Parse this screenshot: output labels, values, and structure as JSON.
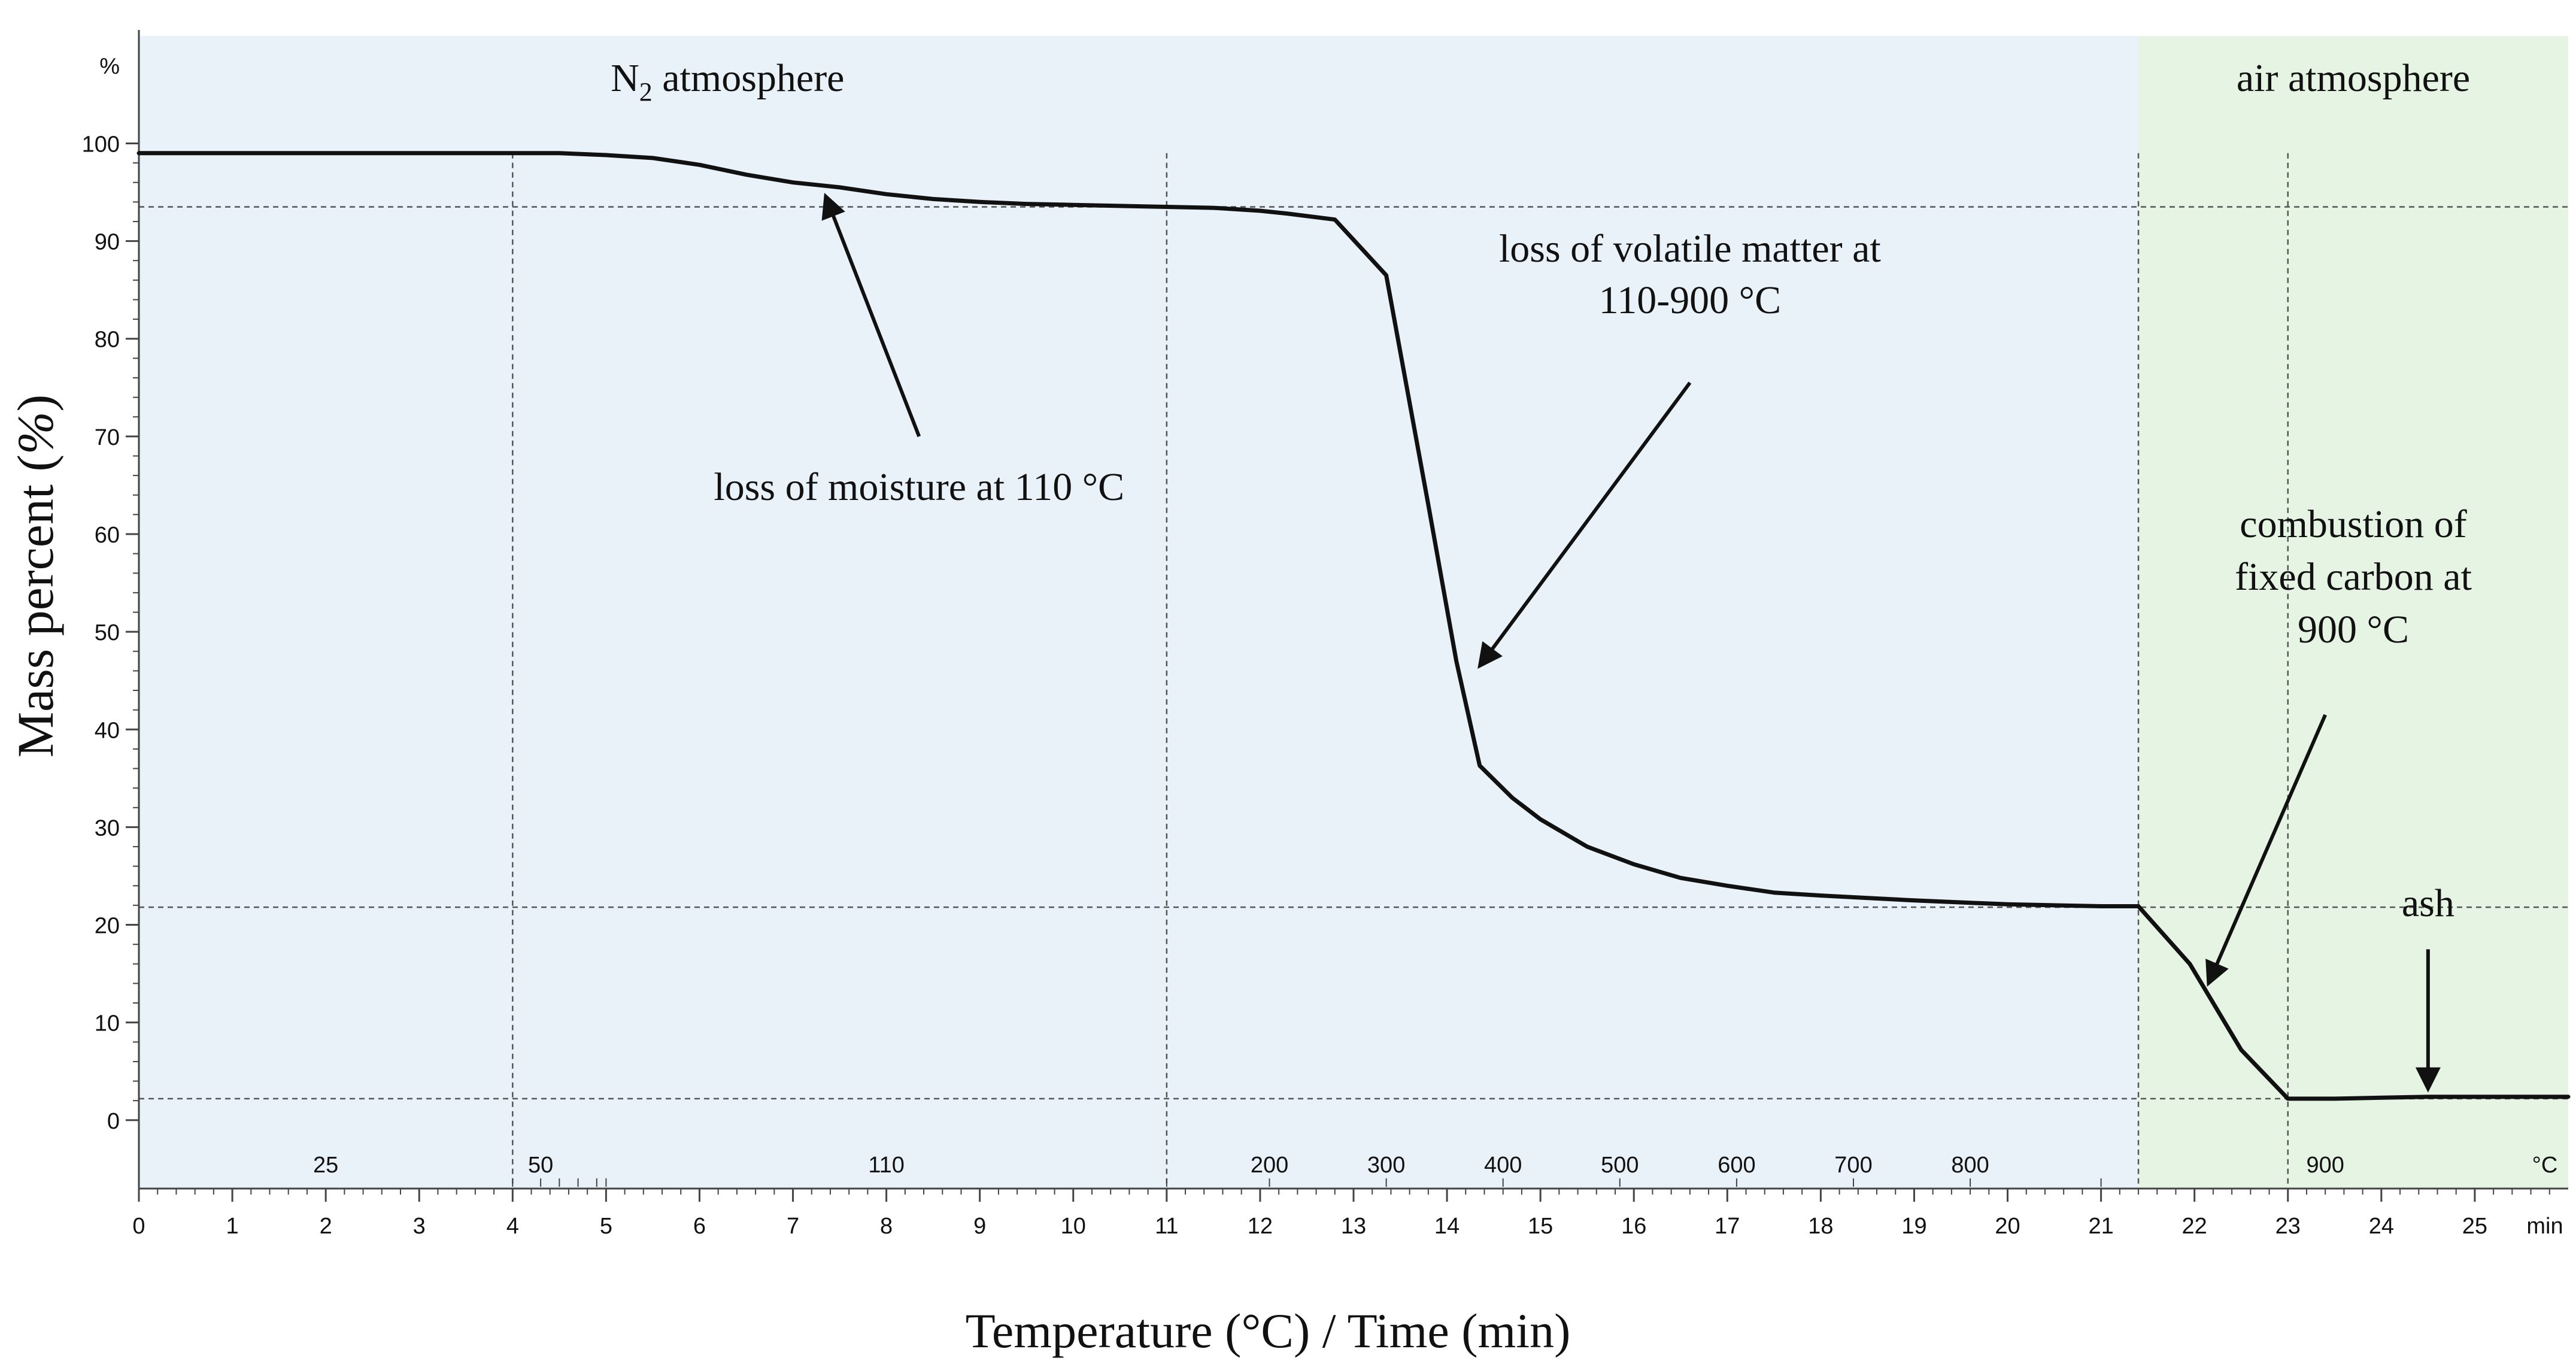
{
  "chart_data": {
    "type": "line",
    "title": "",
    "xlabel": "Temperature (°C) / Time (min)",
    "ylabel": "Mass percent (%)",
    "ylabel_parts": {
      "main": "Mass percent (",
      "unit": "%",
      "close": ")"
    },
    "y_unit": "%",
    "x_unit": "min",
    "temp_unit": "°C",
    "xlim": [
      0,
      26
    ],
    "ylim": [
      -7,
      111
    ],
    "y_ticks": [
      0,
      10,
      20,
      30,
      40,
      50,
      60,
      70,
      80,
      90,
      100
    ],
    "x_ticks": [
      0,
      1,
      2,
      3,
      4,
      5,
      6,
      7,
      8,
      9,
      10,
      11,
      12,
      13,
      14,
      15,
      16,
      17,
      18,
      19,
      20,
      21,
      22,
      23,
      24,
      25
    ],
    "temperature_labels": [
      {
        "time": 2.0,
        "label": "25"
      },
      {
        "time": 4.3,
        "label": "50"
      },
      {
        "time": 8.0,
        "label": "110"
      },
      {
        "time": 12.1,
        "label": "200"
      },
      {
        "time": 13.35,
        "label": "300"
      },
      {
        "time": 14.6,
        "label": "400"
      },
      {
        "time": 15.85,
        "label": "500"
      },
      {
        "time": 17.1,
        "label": "600"
      },
      {
        "time": 18.35,
        "label": "700"
      },
      {
        "time": 19.6,
        "label": "800"
      },
      {
        "time": 23.4,
        "label": "900"
      }
    ],
    "series": [
      {
        "name": "Mass percent",
        "x": [
          0,
          4.0,
          4.5,
          5.0,
          5.5,
          6.0,
          6.5,
          7.0,
          7.5,
          8.0,
          8.5,
          9.0,
          9.5,
          10.0,
          11.0,
          11.5,
          12.0,
          12.3,
          12.8,
          13.35,
          13.8,
          14.1,
          14.35,
          14.7,
          15.0,
          15.5,
          16.0,
          16.5,
          17.0,
          17.5,
          18.0,
          19.0,
          20.0,
          21.0,
          21.4,
          21.95,
          22.5,
          23.0,
          23.5,
          24.0,
          24.5,
          26.0
        ],
        "y": [
          99,
          99,
          99,
          98.8,
          98.5,
          97.8,
          96.8,
          96.0,
          95.5,
          94.8,
          94.3,
          94.0,
          93.8,
          93.7,
          93.5,
          93.4,
          93.1,
          92.8,
          92.2,
          86.5,
          63.0,
          47.0,
          36.3,
          33.0,
          30.8,
          28.0,
          26.2,
          24.8,
          24.0,
          23.3,
          23.0,
          22.5,
          22.1,
          21.9,
          21.9,
          16.0,
          7.2,
          2.2,
          2.2,
          2.3,
          2.4,
          2.4
        ]
      }
    ],
    "reference_lines": {
      "horizontal": [
        93.5,
        21.8,
        2.2
      ],
      "vertical": [
        4.0,
        11.0,
        21.4,
        23.0
      ]
    },
    "regions": [
      {
        "name": "n2",
        "from": 0,
        "to": 21.4,
        "color": "#e9f2f9",
        "label_main": "N",
        "label_sub": "2",
        "label_rest": " atmosphere"
      },
      {
        "name": "air",
        "from": 21.4,
        "to": 26,
        "color": "#e5f4e3",
        "label": "air atmosphere"
      }
    ],
    "annotations": [
      {
        "id": "moisture",
        "lines": [
          "loss of moisture at 110 °C"
        ],
        "arrow_tail": [
          8.35,
          70
        ],
        "arrow_head": [
          7.35,
          94.6
        ]
      },
      {
        "id": "volatile",
        "lines": [
          "loss of volatile matter at",
          "110-900 °C"
        ],
        "arrow_tail": [
          16.6,
          75.5
        ],
        "arrow_head": [
          14.35,
          46.5
        ]
      },
      {
        "id": "combustion",
        "lines": [
          "combustion of",
          "fixed carbon at",
          "900 °C"
        ],
        "arrow_tail": [
          23.4,
          41.5
        ],
        "arrow_head": [
          22.15,
          14.0
        ]
      },
      {
        "id": "ash",
        "lines": [
          "ash"
        ],
        "arrow_tail": [
          24.5,
          17.5
        ],
        "arrow_head": [
          24.5,
          3.2
        ]
      }
    ],
    "colors": {
      "line": "#111111",
      "grid_dash": "#555555",
      "axis": "#444444"
    }
  }
}
